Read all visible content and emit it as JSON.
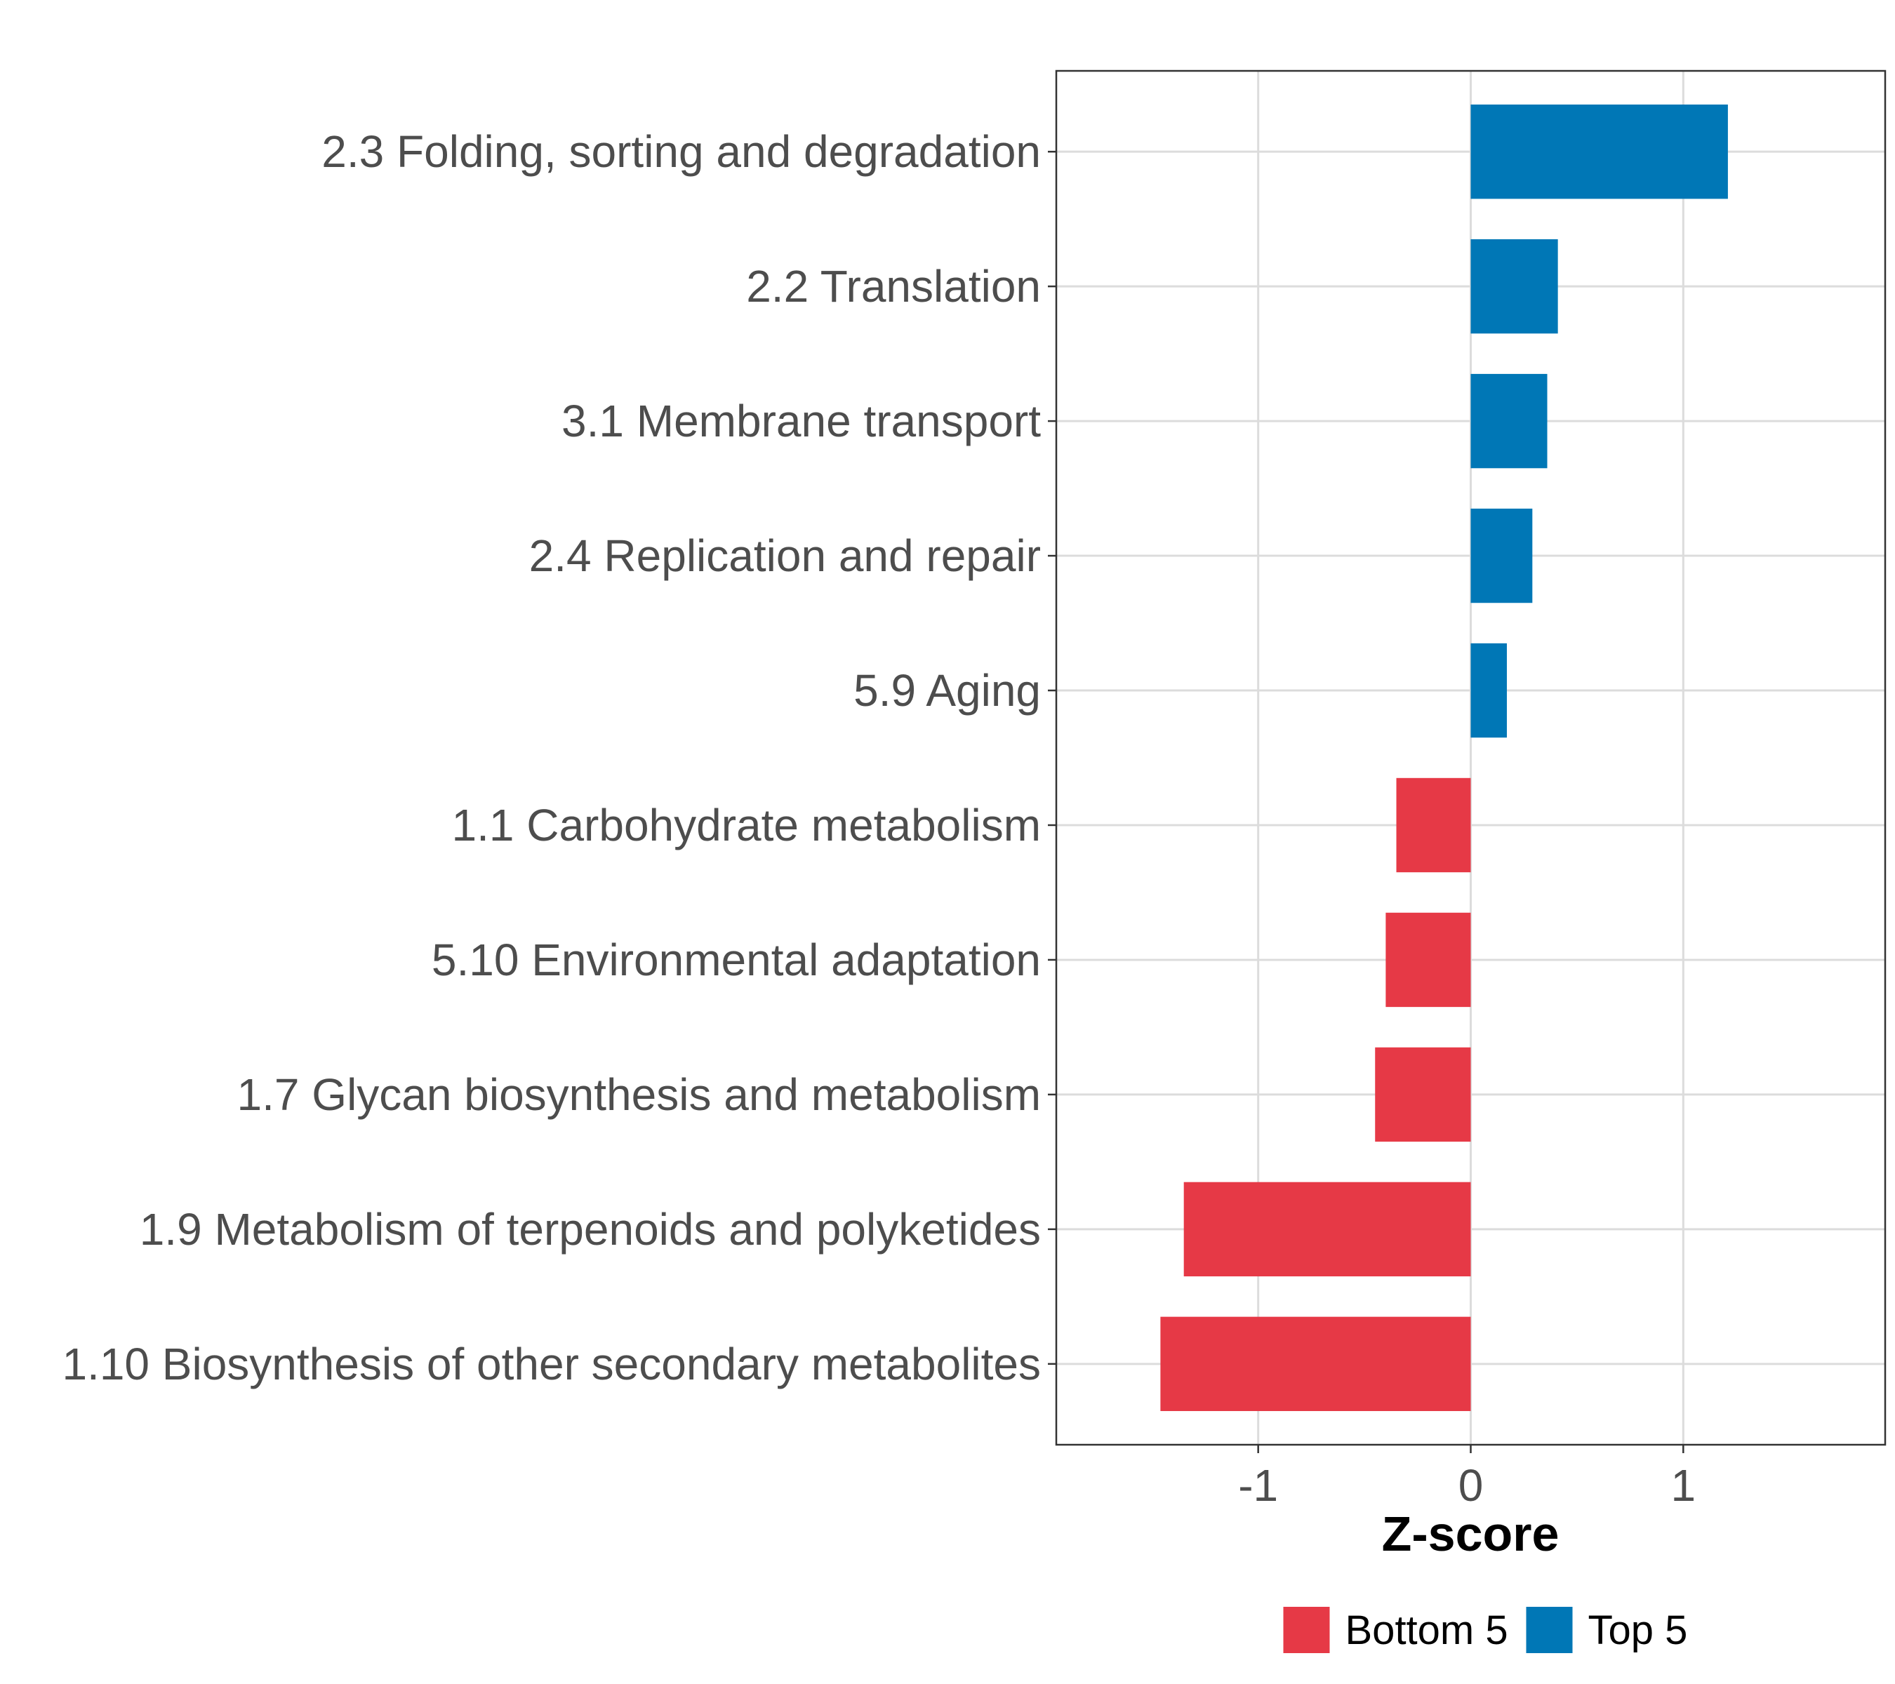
{
  "chart_data": {
    "type": "bar",
    "orientation": "horizontal",
    "title": "",
    "xlabel": "Z-score",
    "ylabel": "",
    "xlim": [
      -1.95,
      1.95
    ],
    "xticks": [
      -1,
      0,
      1
    ],
    "xtick_labels": [
      "-1",
      "0",
      "1"
    ],
    "grid": true,
    "legend_position": "bottom",
    "categories": [
      "2.3 Folding, sorting and degradation",
      "2.2 Translation",
      "3.1 Membrane transport",
      "2.4 Replication and repair",
      "5.9 Aging",
      "1.1 Carbohydrate metabolism",
      "5.10 Environmental adaptation",
      "1.7 Glycan biosynthesis and metabolism",
      "1.9 Metabolism of terpenoids and polyketides",
      "1.10 Biosynthesis of other secondary metabolites"
    ],
    "values": [
      1.21,
      0.41,
      0.36,
      0.29,
      0.17,
      -0.35,
      -0.4,
      -0.45,
      -1.35,
      -1.46
    ],
    "groups": [
      "Top 5",
      "Top 5",
      "Top 5",
      "Top 5",
      "Top 5",
      "Bottom 5",
      "Bottom 5",
      "Bottom 5",
      "Bottom 5",
      "Bottom 5"
    ],
    "legend": [
      {
        "label": "Bottom 5",
        "color": "#e63946"
      },
      {
        "label": "Top 5",
        "color": "#0077b6"
      }
    ]
  }
}
